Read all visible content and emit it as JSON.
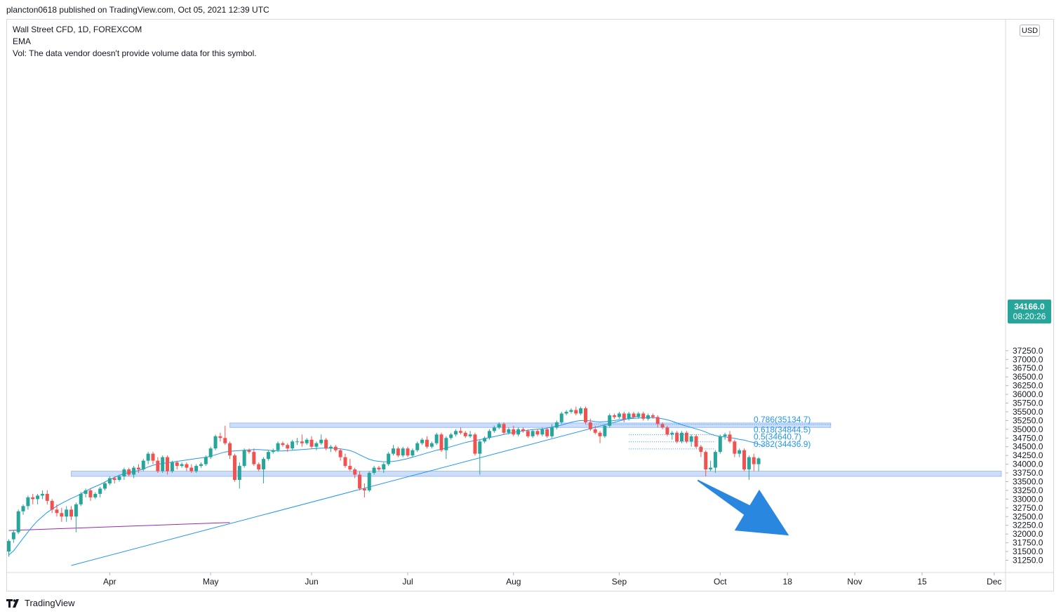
{
  "header": {
    "publish_line": "plancton0618 published on TradingView.com, Oct 05, 2021 12:39 UTC"
  },
  "legend": {
    "symbol_line": "Wall Street CFD, 1D, FOREXCOM",
    "ema_label": "EMA",
    "vol_line": "Vol: The data vendor doesn't provide volume data for this symbol."
  },
  "axis": {
    "currency": "USD",
    "last_price": "34166.0",
    "countdown": "08:20:26"
  },
  "footer": {
    "brand": "TradingView"
  },
  "colors": {
    "up": "#26a69a",
    "down": "#ef5350",
    "ema": "#2196f3",
    "zone_fill": "#bbd3f6",
    "zone_stroke": "#2962ff",
    "trendline": "#2196f3",
    "purple_line": "#9c27b0",
    "arrow": "#2a87e0"
  },
  "chart_data": {
    "type": "candlestick",
    "title": "Wall Street CFD, 1D, FOREXCOM",
    "currency": "USD",
    "y_ticks": [
      31250,
      31500,
      31750,
      32000,
      32250,
      32500,
      32750,
      33000,
      33250,
      33500,
      33750,
      34000,
      34250,
      34500,
      34750,
      35000,
      35250,
      35500,
      35750,
      36000,
      36250,
      36500,
      36750,
      37000,
      37250
    ],
    "y_tick_labels": [
      "31250.0",
      "31500.0",
      "31750.0",
      "32000.0",
      "32250.0",
      "32500.0",
      "32750.0",
      "33000.0",
      "33250.0",
      "33500.0",
      "33750.0",
      "34000.0",
      "34250.0",
      "34500.0",
      "34750.0",
      "35000.0",
      "35250.0",
      "35500.0",
      "35750.0",
      "36000.0",
      "36250.0",
      "36500.0",
      "36750.0",
      "37000.0",
      "37250.0"
    ],
    "ylim": [
      31050,
      37350
    ],
    "x_labels": [
      {
        "label": "Apr",
        "day": 21
      },
      {
        "label": "May",
        "day": 42
      },
      {
        "label": "Jun",
        "day": 63
      },
      {
        "label": "Jul",
        "day": 83
      },
      {
        "label": "Aug",
        "day": 105
      },
      {
        "label": "Sep",
        "day": 127
      },
      {
        "label": "Oct",
        "day": 148
      },
      {
        "label": "18",
        "day": 162
      },
      {
        "label": "Nov",
        "day": 176
      },
      {
        "label": "15",
        "day": 190
      },
      {
        "label": "Dec",
        "day": 205
      }
    ],
    "start_date": "2021-03-09",
    "last_price": 34166.0,
    "candles": [
      [
        31500,
        31800,
        31350,
        31850
      ],
      [
        31850,
        32050,
        31750,
        32100
      ],
      [
        32050,
        32650,
        32000,
        32700
      ],
      [
        32650,
        32800,
        32550,
        32850
      ],
      [
        32800,
        33050,
        32700,
        33100
      ],
      [
        33050,
        33000,
        32850,
        33150
      ],
      [
        33000,
        33100,
        32850,
        33150
      ],
      [
        33100,
        33150,
        33000,
        33250
      ],
      [
        33150,
        32950,
        32850,
        33250
      ],
      [
        32950,
        32700,
        32600,
        33000
      ],
      [
        32700,
        32600,
        32500,
        32850
      ],
      [
        32600,
        32500,
        32350,
        32750
      ],
      [
        32500,
        32700,
        32350,
        32800
      ],
      [
        32700,
        32500,
        32400,
        32800
      ],
      [
        32500,
        32850,
        32050,
        32900
      ],
      [
        32850,
        33150,
        32800,
        33200
      ],
      [
        33150,
        33250,
        33050,
        33300
      ],
      [
        33250,
        33050,
        32950,
        33300
      ],
      [
        33050,
        33150,
        33000,
        33200
      ],
      [
        33150,
        33300,
        33050,
        33350
      ],
      [
        33300,
        33450,
        33250,
        33500
      ],
      [
        33450,
        33600,
        33400,
        33650
      ],
      [
        33600,
        33550,
        33450,
        33650
      ],
      [
        33550,
        33650,
        33500,
        33700
      ],
      [
        33650,
        33850,
        33550,
        33900
      ],
      [
        33850,
        33700,
        33650,
        33900
      ],
      [
        33700,
        33900,
        33600,
        33950
      ],
      [
        33900,
        33850,
        33750,
        34000
      ],
      [
        33850,
        34100,
        33800,
        34150
      ],
      [
        34100,
        34300,
        34000,
        34350
      ],
      [
        34300,
        34100,
        34000,
        34350
      ],
      [
        34100,
        33800,
        33750,
        34200
      ],
      [
        33800,
        34200,
        33750,
        34250
      ],
      [
        34200,
        33800,
        33700,
        34250
      ],
      [
        33800,
        34050,
        33750,
        34100
      ],
      [
        34050,
        33950,
        33850,
        34100
      ],
      [
        33950,
        34000,
        33900,
        34050
      ],
      [
        34000,
        33900,
        33800,
        34050
      ],
      [
        33900,
        33800,
        33750,
        34000
      ],
      [
        33800,
        33950,
        33750,
        34000
      ],
      [
        33950,
        34000,
        33900,
        34050
      ],
      [
        34000,
        34200,
        33950,
        34250
      ],
      [
        34200,
        34450,
        34150,
        34500
      ],
      [
        34450,
        34800,
        34400,
        34850
      ],
      [
        34800,
        34750,
        34650,
        34900
      ],
      [
        34750,
        34600,
        34550,
        35100
      ],
      [
        34600,
        34250,
        34150,
        34650
      ],
      [
        34250,
        33550,
        33500,
        34300
      ],
      [
        33550,
        33950,
        33300,
        34050
      ],
      [
        33950,
        34400,
        33900,
        34450
      ],
      [
        34400,
        34350,
        34300,
        34450
      ],
      [
        34350,
        34000,
        33950,
        34450
      ],
      [
        34000,
        33850,
        33800,
        34050
      ],
      [
        33850,
        34150,
        33450,
        34200
      ],
      [
        34150,
        34350,
        34100,
        34400
      ],
      [
        34350,
        34400,
        34300,
        34450
      ],
      [
        34400,
        34600,
        34350,
        34650
      ],
      [
        34600,
        34550,
        34500,
        34650
      ],
      [
        34550,
        34450,
        34350,
        34600
      ],
      [
        34450,
        34650,
        34400,
        34700
      ],
      [
        34650,
        34650,
        34550,
        34750
      ],
      [
        34650,
        34600,
        34500,
        34850
      ],
      [
        34600,
        34700,
        34550,
        34750
      ],
      [
        34700,
        34500,
        34450,
        34800
      ],
      [
        34500,
        34600,
        34400,
        34650
      ],
      [
        34600,
        34700,
        34550,
        34850
      ],
      [
        34700,
        34450,
        34400,
        34750
      ],
      [
        34450,
        34500,
        34350,
        34550
      ],
      [
        34500,
        34400,
        34350,
        34550
      ],
      [
        34400,
        34200,
        34100,
        34450
      ],
      [
        34200,
        33950,
        33900,
        34300
      ],
      [
        33950,
        33850,
        33800,
        34150
      ],
      [
        33850,
        33700,
        33600,
        33900
      ],
      [
        33700,
        33300,
        33250,
        33800
      ],
      [
        33300,
        33250,
        33050,
        33450
      ],
      [
        33250,
        33750,
        33200,
        33800
      ],
      [
        33750,
        33900,
        33700,
        33950
      ],
      [
        33900,
        33850,
        33800,
        33950
      ],
      [
        33850,
        34000,
        33750,
        34050
      ],
      [
        34000,
        34300,
        33950,
        34350
      ],
      [
        34300,
        34450,
        34250,
        34550
      ],
      [
        34450,
        34250,
        34200,
        34500
      ],
      [
        34250,
        34450,
        34200,
        34500
      ],
      [
        34450,
        34250,
        34200,
        34500
      ],
      [
        34250,
        34400,
        34200,
        34450
      ],
      [
        34400,
        34600,
        34350,
        34650
      ],
      [
        34600,
        34700,
        34550,
        34750
      ],
      [
        34700,
        34500,
        34450,
        34800
      ],
      [
        34500,
        34600,
        34450,
        34650
      ],
      [
        34600,
        34850,
        34550,
        34900
      ],
      [
        34850,
        34400,
        34350,
        34900
      ],
      [
        34400,
        34750,
        34150,
        34800
      ],
      [
        34750,
        34850,
        34700,
        34900
      ],
      [
        34850,
        34950,
        34800,
        35000
      ],
      [
        34950,
        34900,
        34850,
        35050
      ],
      [
        34900,
        34800,
        34750,
        34950
      ],
      [
        34800,
        34850,
        34750,
        34950
      ],
      [
        34850,
        34300,
        34250,
        34900
      ],
      [
        34300,
        34650,
        33700,
        34700
      ],
      [
        34650,
        34750,
        34600,
        34800
      ],
      [
        34750,
        34950,
        34700,
        35000
      ],
      [
        34950,
        35050,
        34900,
        35100
      ],
      [
        35050,
        35150,
        35000,
        35200
      ],
      [
        35150,
        34900,
        34850,
        35200
      ],
      [
        34900,
        35000,
        34850,
        35050
      ],
      [
        35000,
        34850,
        34800,
        35100
      ],
      [
        34850,
        35000,
        34800,
        35050
      ],
      [
        35000,
        34950,
        34900,
        35050
      ],
      [
        34950,
        34800,
        34750,
        35000
      ],
      [
        34800,
        34950,
        34750,
        35000
      ],
      [
        34950,
        34850,
        34800,
        35000
      ],
      [
        34850,
        35000,
        34800,
        35050
      ],
      [
        35000,
        34800,
        34750,
        35050
      ],
      [
        34800,
        35050,
        34750,
        35150
      ],
      [
        35050,
        35200,
        35000,
        35250
      ],
      [
        35200,
        35450,
        35150,
        35500
      ],
      [
        35450,
        35500,
        35400,
        35550
      ],
      [
        35500,
        35550,
        35450,
        35600
      ],
      [
        35550,
        35450,
        35400,
        35650
      ],
      [
        35450,
        35600,
        35400,
        35650
      ],
      [
        35600,
        35200,
        35150,
        35650
      ],
      [
        35200,
        35000,
        34950,
        35300
      ],
      [
        35000,
        34900,
        34850,
        35100
      ],
      [
        34900,
        34800,
        34600,
        34950
      ],
      [
        34800,
        35100,
        34750,
        35150
      ],
      [
        35100,
        35400,
        35050,
        35450
      ],
      [
        35400,
        35350,
        35300,
        35450
      ],
      [
        35350,
        35450,
        35300,
        35500
      ],
      [
        35450,
        35300,
        35200,
        35500
      ],
      [
        35300,
        35450,
        35250,
        35500
      ],
      [
        35450,
        35350,
        35300,
        35500
      ],
      [
        35350,
        35450,
        35300,
        35500
      ],
      [
        35450,
        35300,
        35250,
        35500
      ],
      [
        35300,
        35400,
        35250,
        35450
      ],
      [
        35400,
        35350,
        35300,
        35450
      ],
      [
        35350,
        35150,
        35050,
        35400
      ],
      [
        35150,
        35050,
        35000,
        35200
      ],
      [
        35050,
        34850,
        34800,
        35100
      ],
      [
        34850,
        34900,
        34700,
        34950
      ],
      [
        34900,
        34650,
        34600,
        34950
      ],
      [
        34650,
        34900,
        34600,
        34950
      ],
      [
        34900,
        34650,
        34600,
        34950
      ],
      [
        34650,
        34800,
        34500,
        34850
      ],
      [
        34800,
        34500,
        34450,
        34850
      ],
      [
        34500,
        34350,
        34200,
        34550
      ],
      [
        34350,
        33850,
        33650,
        34400
      ],
      [
        33850,
        33900,
        33800,
        34100
      ],
      [
        33900,
        34350,
        33750,
        34400
      ],
      [
        34350,
        34800,
        34300,
        34850
      ],
      [
        34800,
        34850,
        34700,
        34900
      ],
      [
        34850,
        34650,
        34600,
        34950
      ],
      [
        34650,
        34300,
        34200,
        34700
      ],
      [
        34300,
        34400,
        34200,
        34450
      ],
      [
        34400,
        33850,
        33800,
        34450
      ],
      [
        33850,
        34200,
        33550,
        34250
      ],
      [
        34200,
        34000,
        33800,
        34300
      ],
      [
        34000,
        34166,
        33800,
        34200
      ]
    ],
    "ema_series": [
      31400,
      31520,
      31700,
      31880,
      32060,
      32230,
      32380,
      32500,
      32620,
      32710,
      32800,
      32880,
      32950,
      33020,
      33080,
      33150,
      33230,
      33300,
      33360,
      33420,
      33490,
      33560,
      33620,
      33680,
      33730,
      33760,
      33790,
      33820,
      33860,
      33920,
      33970,
      34000,
      34020,
      34040,
      34060,
      34080,
      34100,
      34120,
      34140,
      34160,
      34180,
      34200,
      34230,
      34270,
      34310,
      34350,
      34370,
      34380,
      34390,
      34400,
      34410,
      34420,
      34420,
      34410,
      34400,
      34390,
      34380,
      34380,
      34390,
      34400,
      34410,
      34420,
      34430,
      34440,
      34450,
      34460,
      34460,
      34460,
      34450,
      34440,
      34420,
      34390,
      34340,
      34270,
      34200,
      34140,
      34100,
      34080,
      34070,
      34070,
      34080,
      34100,
      34130,
      34160,
      34200,
      34240,
      34280,
      34320,
      34360,
      34400,
      34430,
      34460,
      34500,
      34540,
      34580,
      34620,
      34650,
      34680,
      34700,
      34730,
      34760,
      34790,
      34820,
      34850,
      34880,
      34910,
      34930,
      34950,
      34970,
      34990,
      35000,
      35010,
      35030,
      35060,
      35090,
      35120,
      35160,
      35200,
      35230,
      35250,
      35250,
      35240,
      35220,
      35210,
      35220,
      35230,
      35250,
      35270,
      35290,
      35300,
      35310,
      35320,
      35330,
      35330,
      35330,
      35320,
      35300,
      35270,
      35230,
      35180,
      35130,
      35090,
      35050,
      35010,
      34970,
      34920,
      34860,
      34820,
      34790,
      34780,
      34760,
      34740,
      34710,
      34690,
      34650,
      34620,
      34570,
      34530
    ],
    "support_zone": {
      "low": 33650,
      "high": 33800,
      "from_day": 13,
      "to_day": 210
    },
    "resistance_zone": {
      "low": 35050,
      "high": 35180,
      "from_day": 46,
      "to_day": 171
    },
    "trendline": {
      "from_day": 13,
      "from_price": 31100,
      "to_day": 131,
      "to_price": 35380
    },
    "purple_line": {
      "from_day": 0,
      "from_price": 32100,
      "to_day": 46,
      "to_price": 32330
    },
    "fibonacci_levels": [
      {
        "label": "0.786(35134.7)",
        "value": 35134.7
      },
      {
        "label": "0.618(34844.5)",
        "value": 34844.5
      },
      {
        "label": "0.5(34640.7)",
        "value": 34640.7
      },
      {
        "label": "0.382(34436.9)",
        "value": 34436.9
      }
    ],
    "arrow": {
      "from_day": 142,
      "from_price": 33600,
      "to_day": 155,
      "to_price": 32200
    }
  }
}
